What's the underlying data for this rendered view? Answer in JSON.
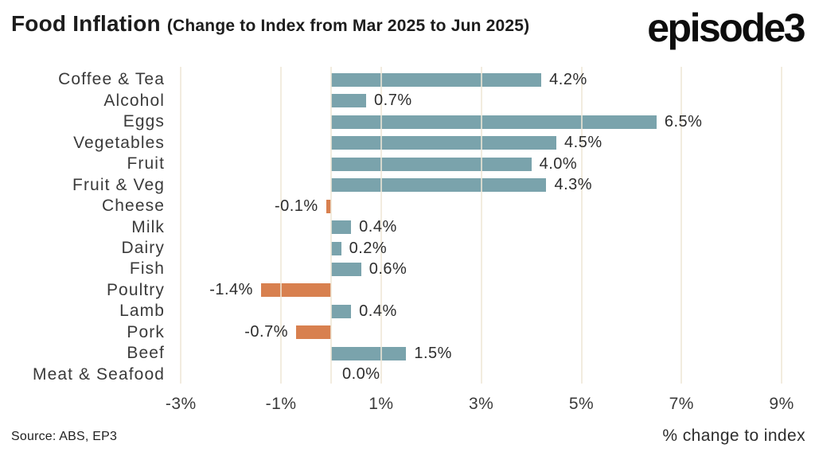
{
  "header": {
    "title_main": "Food Inflation ",
    "title_sub": "(Change to Index from Mar 2025 to Jun 2025)",
    "logo": "episode3"
  },
  "footer": {
    "source": "Source: ABS, EP3"
  },
  "chart_data": {
    "type": "bar",
    "orientation": "horizontal",
    "title": "Food Inflation (Change to Index from Mar 2025 to Jun 2025)",
    "categories": [
      "Coffee & Tea",
      "Alcohol",
      "Eggs",
      "Vegetables",
      "Fruit",
      "Fruit & Veg",
      "Cheese",
      "Milk",
      "Dairy",
      "Fish",
      "Poultry",
      "Lamb",
      "Pork",
      "Beef",
      "Meat & Seafood"
    ],
    "values": [
      4.2,
      0.7,
      6.5,
      4.5,
      4.0,
      4.3,
      -0.1,
      0.4,
      0.2,
      0.6,
      -1.4,
      0.4,
      -0.7,
      1.5,
      0.0
    ],
    "labels": [
      "4.2%",
      "0.7%",
      "6.5%",
      "4.5%",
      "4.0%",
      "4.3%",
      "-0.1%",
      "0.4%",
      "0.2%",
      "0.6%",
      "-1.4%",
      "0.4%",
      "-0.7%",
      "1.5%",
      "0.0%"
    ],
    "xticks": [
      "-3%",
      "-1%",
      "1%",
      "3%",
      "5%",
      "7%",
      "9%"
    ],
    "xtick_values": [
      -3,
      -1,
      1,
      3,
      5,
      7,
      9
    ],
    "xlim": [
      -3.3,
      9.6
    ],
    "xlabel": "% change to index",
    "grid": true,
    "legend": "none",
    "colors": {
      "positive": "#7aa3ac",
      "negative": "#d8804f",
      "gridline": "#f1ecdf",
      "text": "#2d2d2d"
    }
  }
}
